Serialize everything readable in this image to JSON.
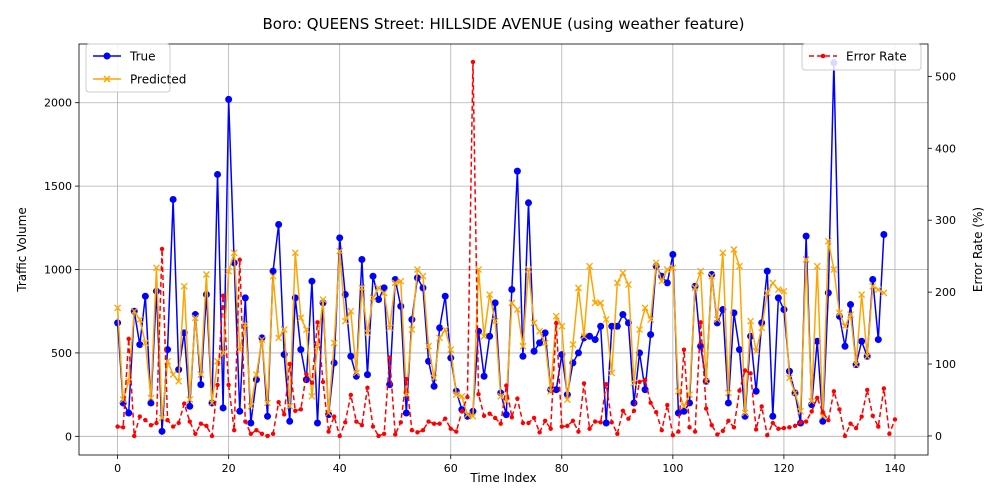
{
  "chart_data": {
    "type": "line",
    "title": "Boro: QUEENS Street: HILLSIDE AVENUE (using weather feature)",
    "xlabel": "Time Index",
    "ylabel_left": "Traffic Volume",
    "ylabel_right": "Error Rate (%)",
    "xlim": [
      -6.95,
      145.95
    ],
    "ylim_left": [
      -112,
      2352
    ],
    "ylim_right": [
      -26.5,
      545
    ],
    "x_ticks": [
      0,
      20,
      40,
      60,
      80,
      100,
      120,
      140
    ],
    "y_ticks_left": [
      0,
      500,
      1000,
      1500,
      2000
    ],
    "y_ticks_right": [
      0,
      100,
      200,
      300,
      400,
      500
    ],
    "grid": true,
    "legend_left_position": "upper-left",
    "legend_right_position": "upper-right",
    "colors": {
      "true": "#0000ff",
      "predicted": "#ffa500",
      "error": "#ff0000",
      "grid": "#b0b0b0"
    },
    "series": [
      {
        "name": "True",
        "axis": "left",
        "values": [
          680,
          200,
          140,
          750,
          550,
          840,
          200,
          870,
          30,
          520,
          1420,
          400,
          620,
          180,
          730,
          310,
          850,
          200,
          1570,
          170,
          2020,
          1040,
          150,
          830,
          80,
          340,
          590,
          120,
          990,
          1270,
          490,
          90,
          830,
          520,
          340,
          930,
          80,
          800,
          130,
          440,
          1190,
          850,
          480,
          360,
          1060,
          370,
          960,
          820,
          890,
          310,
          940,
          780,
          140,
          700,
          950,
          890,
          450,
          300,
          650,
          840,
          470,
          270,
          160,
          120,
          150,
          630,
          360,
          600,
          800,
          260,
          130,
          880,
          1590,
          480,
          1400,
          510,
          560,
          620,
          280,
          280,
          490,
          250,
          440,
          500,
          590,
          600,
          580,
          660,
          80,
          660,
          660,
          730,
          680,
          200,
          500,
          280,
          610,
          1020,
          960,
          920,
          1090,
          140,
          150,
          200,
          900,
          540,
          330,
          970,
          680,
          760,
          200,
          740,
          520,
          120,
          600,
          270,
          680,
          990,
          120,
          830,
          760,
          390,
          260,
          80,
          1200,
          190,
          570,
          90,
          860,
          2240,
          720,
          540,
          790,
          430,
          570,
          480,
          940,
          580,
          1210
        ]
      },
      {
        "name": "Predicted",
        "axis": "left",
        "values": [
          770,
          220,
          330,
          750,
          700,
          560,
          230,
          1010,
          110,
          450,
          370,
          330,
          900,
          220,
          710,
          370,
          970,
          200,
          450,
          500,
          990,
          1100,
          520,
          670,
          180,
          370,
          580,
          200,
          960,
          590,
          640,
          180,
          1100,
          710,
          640,
          240,
          540,
          820,
          140,
          560,
          1110,
          690,
          750,
          380,
          890,
          620,
          830,
          890,
          860,
          650,
          920,
          930,
          250,
          640,
          1000,
          960,
          540,
          350,
          590,
          640,
          520,
          250,
          240,
          130,
          120,
          1000,
          600,
          850,
          690,
          240,
          210,
          800,
          760,
          540,
          1000,
          680,
          630,
          560,
          270,
          720,
          660,
          220,
          550,
          890,
          600,
          1020,
          800,
          800,
          700,
          380,
          920,
          980,
          910,
          320,
          640,
          770,
          700,
          1040,
          930,
          1000,
          1010,
          270,
          180,
          250,
          890,
          990,
          330,
          960,
          700,
          1100,
          260,
          1120,
          1020,
          140,
          690,
          510,
          650,
          860,
          920,
          880,
          870,
          350,
          260,
          150,
          1060,
          210,
          1020,
          120,
          1170,
          1000,
          740,
          660,
          730,
          430,
          850,
          480,
          900,
          880,
          860
        ]
      },
      {
        "name": "Error Rate",
        "axis": "right",
        "values": [
          13,
          12,
          135,
          0,
          27,
          22,
          15,
          18,
          260,
          22,
          13,
          18,
          45,
          20,
          3,
          17,
          14,
          0,
          71,
          195,
          71,
          8,
          245,
          20,
          3,
          8,
          3,
          0,
          3,
          47,
          30,
          100,
          35,
          37,
          86,
          74,
          158,
          75,
          6,
          27,
          0,
          19,
          57,
          20,
          15,
          67,
          13,
          0,
          3,
          109,
          2,
          19,
          79,
          8,
          5,
          8,
          20,
          17,
          17,
          24,
          10,
          6,
          34,
          54,
          520,
          58,
          28,
          31,
          25,
          17,
          70,
          26,
          52,
          18,
          18,
          25,
          5,
          21,
          10,
          157,
          13,
          14,
          21,
          6,
          73,
          10,
          20,
          19,
          72,
          19,
          3,
          35,
          24,
          35,
          75,
          78,
          46,
          33,
          8,
          43,
          1,
          6,
          120,
          12,
          6,
          158,
          38,
          15,
          2,
          7,
          21,
          12,
          63,
          91,
          87,
          9,
          41,
          1,
          18,
          10,
          11,
          12,
          14,
          19,
          20,
          34,
          53,
          33,
          22,
          62,
          37,
          0,
          17,
          11,
          27,
          64,
          28,
          13,
          66,
          3,
          23
        ]
      }
    ]
  }
}
